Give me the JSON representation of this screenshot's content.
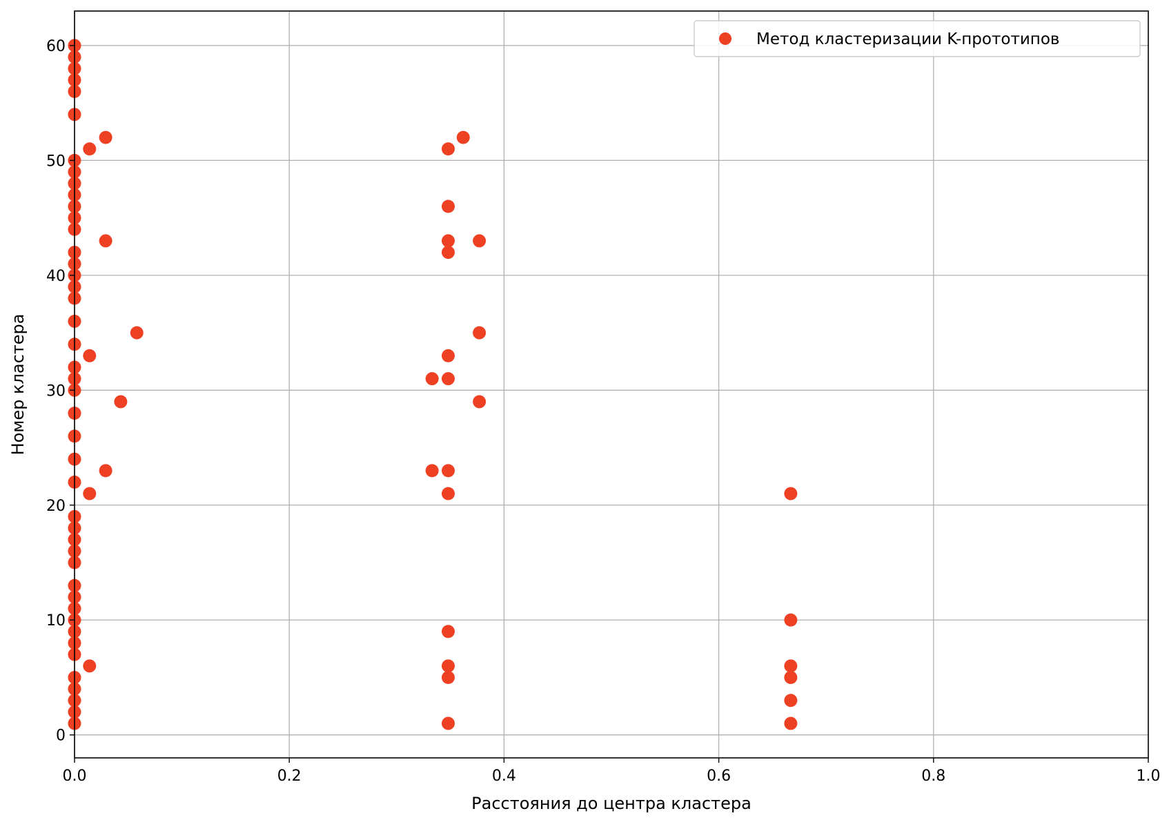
{
  "chart_data": {
    "type": "scatter",
    "xlabel": "Расстояния до центра кластера",
    "ylabel": "Номер кластера",
    "xlim": [
      0.0,
      1.0
    ],
    "ylim": [
      -2,
      63
    ],
    "xticks": [
      0.0,
      0.2,
      0.4,
      0.6,
      0.8,
      1.0
    ],
    "xtick_labels": [
      "0.0",
      "0.2",
      "0.4",
      "0.6",
      "0.8",
      "1.0"
    ],
    "yticks": [
      0,
      10,
      20,
      30,
      40,
      50,
      60
    ],
    "ytick_labels": [
      "0",
      "10",
      "20",
      "30",
      "40",
      "50",
      "60"
    ],
    "grid": true,
    "legend_position": "top-right",
    "series": [
      {
        "name": "Метод кластеризации K-прототипов",
        "color": "#EE4124",
        "points": [
          [
            0.0,
            60
          ],
          [
            0.0,
            59
          ],
          [
            0.0,
            58
          ],
          [
            0.0,
            57
          ],
          [
            0.0,
            56
          ],
          [
            0.0,
            54
          ],
          [
            0.0,
            50
          ],
          [
            0.0,
            49
          ],
          [
            0.0,
            48
          ],
          [
            0.0,
            47
          ],
          [
            0.0,
            46
          ],
          [
            0.0,
            45
          ],
          [
            0.0,
            44
          ],
          [
            0.0,
            42
          ],
          [
            0.0,
            41
          ],
          [
            0.0,
            40
          ],
          [
            0.0,
            39
          ],
          [
            0.0,
            38
          ],
          [
            0.0,
            36
          ],
          [
            0.0,
            34
          ],
          [
            0.0,
            32
          ],
          [
            0.0,
            31
          ],
          [
            0.0,
            30
          ],
          [
            0.0,
            28
          ],
          [
            0.0,
            26
          ],
          [
            0.0,
            24
          ],
          [
            0.0,
            22
          ],
          [
            0.0,
            19
          ],
          [
            0.0,
            18
          ],
          [
            0.0,
            17
          ],
          [
            0.0,
            16
          ],
          [
            0.0,
            15
          ],
          [
            0.0,
            13
          ],
          [
            0.0,
            12
          ],
          [
            0.0,
            11
          ],
          [
            0.0,
            10
          ],
          [
            0.0,
            9
          ],
          [
            0.0,
            8
          ],
          [
            0.0,
            7
          ],
          [
            0.0,
            5
          ],
          [
            0.0,
            4
          ],
          [
            0.0,
            3
          ],
          [
            0.0,
            2
          ],
          [
            0.0,
            1
          ],
          [
            0.014,
            51
          ],
          [
            0.029,
            52
          ],
          [
            0.029,
            43
          ],
          [
            0.058,
            35
          ],
          [
            0.014,
            33
          ],
          [
            0.043,
            29
          ],
          [
            0.029,
            23
          ],
          [
            0.014,
            21
          ],
          [
            0.014,
            6
          ],
          [
            0.348,
            51
          ],
          [
            0.362,
            52
          ],
          [
            0.348,
            46
          ],
          [
            0.348,
            43
          ],
          [
            0.377,
            43
          ],
          [
            0.348,
            42
          ],
          [
            0.377,
            35
          ],
          [
            0.348,
            33
          ],
          [
            0.333,
            31
          ],
          [
            0.348,
            31
          ],
          [
            0.377,
            29
          ],
          [
            0.333,
            23
          ],
          [
            0.348,
            23
          ],
          [
            0.348,
            21
          ],
          [
            0.348,
            9
          ],
          [
            0.348,
            6
          ],
          [
            0.348,
            5
          ],
          [
            0.348,
            1
          ],
          [
            0.667,
            21
          ],
          [
            0.667,
            10
          ],
          [
            0.667,
            6
          ],
          [
            0.667,
            5
          ],
          [
            0.667,
            3
          ],
          [
            0.667,
            1
          ]
        ]
      }
    ]
  }
}
